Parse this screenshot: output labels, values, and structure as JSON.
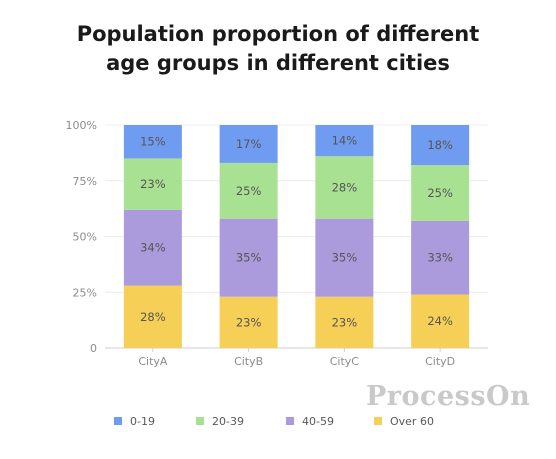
{
  "chart_data": {
    "type": "bar",
    "stacked": true,
    "title_lines": [
      "Population proportion of different",
      "age groups in different cities"
    ],
    "categories": [
      "CityA",
      "CityB",
      "CityC",
      "CityD"
    ],
    "y_ticks": [
      "0",
      "25%",
      "50%",
      "75%",
      "100%"
    ],
    "ylim": [
      0,
      100
    ],
    "grid": true,
    "legend_position": "bottom",
    "series": [
      {
        "name": "0-19",
        "color": "#6f9cf0",
        "values": [
          15,
          17,
          14,
          18
        ],
        "labels": [
          "15%",
          "17%",
          "14%",
          "18%"
        ]
      },
      {
        "name": "20-39",
        "color": "#a9e193",
        "values": [
          23,
          25,
          28,
          25
        ],
        "labels": [
          "23%",
          "25%",
          "28%",
          "25%"
        ]
      },
      {
        "name": "40-59",
        "color": "#ab9bdc",
        "values": [
          34,
          35,
          35,
          33
        ],
        "labels": [
          "34%",
          "35%",
          "35%",
          "33%"
        ]
      },
      {
        "name": "Over 60",
        "color": "#f6cf57",
        "values": [
          28,
          23,
          23,
          24
        ],
        "labels": [
          "28%",
          "23%",
          "23%",
          "24%"
        ]
      }
    ],
    "stack_order_bottom_to_top": [
      "Over 60",
      "40-59",
      "20-39",
      "0-19"
    ]
  },
  "watermark": "ProcessOn"
}
